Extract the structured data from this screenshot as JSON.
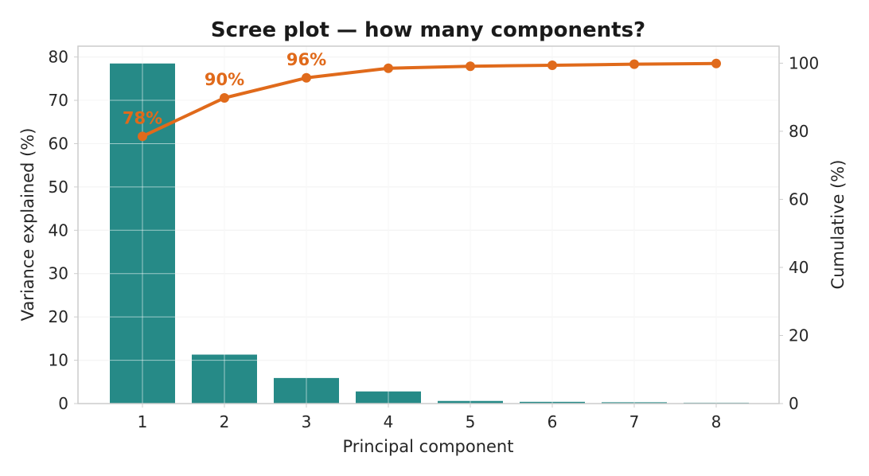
{
  "chart_data": {
    "type": "bar",
    "title": "Scree plot — how many components?",
    "xlabel": "Principal component",
    "ylabel": "Variance explained (%)",
    "y2label": "Cumulative (%)",
    "categories": [
      "1",
      "2",
      "3",
      "4",
      "5",
      "6",
      "7",
      "8"
    ],
    "ylim": [
      0,
      82.5
    ],
    "y2lim": [
      0,
      105
    ],
    "yticks": [
      0,
      10,
      20,
      30,
      40,
      50,
      60,
      70,
      80
    ],
    "y2ticks": [
      0,
      20,
      40,
      60,
      80,
      100
    ],
    "grid": true,
    "series": [
      {
        "type": "bar",
        "axis": "left",
        "values": [
          78.5,
          11.3,
          5.9,
          2.8,
          0.6,
          0.4,
          0.3,
          0.2
        ]
      },
      {
        "type": "line",
        "axis": "right",
        "values": [
          78.5,
          89.8,
          95.7,
          98.5,
          99.1,
          99.4,
          99.7,
          99.9
        ]
      }
    ],
    "annotations": [
      {
        "text": "78%",
        "category": "1"
      },
      {
        "text": "90%",
        "category": "2"
      },
      {
        "text": "96%",
        "category": "3"
      }
    ],
    "colors": {
      "bar": "#268a87",
      "line": "#e06a1b",
      "grid": "#e6e6e6",
      "spine": "#cccccc"
    }
  }
}
